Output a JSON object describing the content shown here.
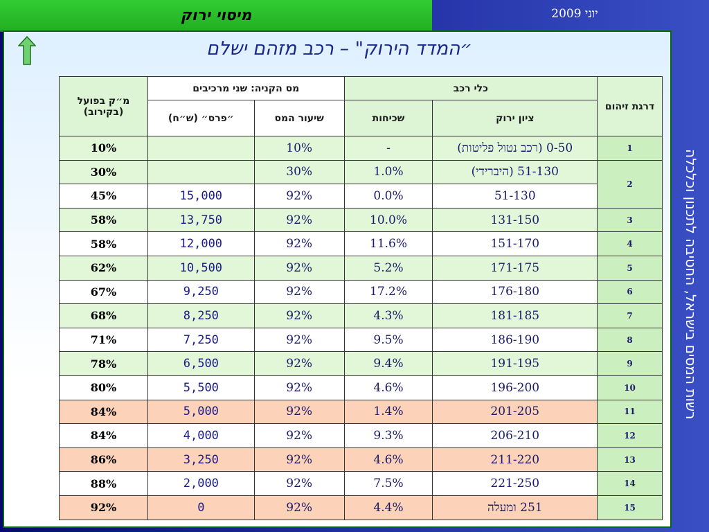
{
  "header": {
    "title": "מיסוי ירוק",
    "date": "יוני  2009"
  },
  "headline": "״המדד הירוק\" – רכב מזהם ישלם",
  "side_text": "רשות המסים בישראל, החטיבה לתכנון וכלכלה",
  "table": {
    "headers": {
      "grade": "דרגת זיהום",
      "vehicle": "כלי רכב",
      "green_score": "ציון ירוק",
      "prevalence": "שכיחות",
      "purchase_tax": "מס הקניה: שני מרכיבים",
      "tax_rate": "שיעור המס",
      "prize": "״פרס״ (ש״ח)",
      "actual": "מ״ק בפועל (בקירוב)"
    },
    "rows": [
      {
        "grade": "1",
        "score": "0-50 (רכב נטול פליטות)",
        "prev": "-",
        "tax": "10%",
        "prize": "",
        "actual": "10%",
        "style": "green"
      },
      {
        "grade": "2",
        "score": "51-130 (היברידי)",
        "prev": "1.0%",
        "tax": "30%",
        "prize": "",
        "actual": "30%",
        "style": "green"
      },
      {
        "grade": "",
        "score": "51-130",
        "prev": "0.0%",
        "tax": "92%",
        "prize": "15,000",
        "actual": "45%",
        "style": "white"
      },
      {
        "grade": "3",
        "score": "131-150",
        "prev": "10.0%",
        "tax": "92%",
        "prize": "13,750",
        "actual": "58%",
        "style": "green"
      },
      {
        "grade": "4",
        "score": "151-170",
        "prev": "11.6%",
        "tax": "92%",
        "prize": "12,000",
        "actual": "58%",
        "style": "white"
      },
      {
        "grade": "5",
        "score": "171-175",
        "prev": "5.2%",
        "tax": "92%",
        "prize": "10,500",
        "actual": "62%",
        "style": "green"
      },
      {
        "grade": "6",
        "score": "176-180",
        "prev": "17.2%",
        "tax": "92%",
        "prize": "9,250",
        "actual": "67%",
        "style": "white"
      },
      {
        "grade": "7",
        "score": "181-185",
        "prev": "4.3%",
        "tax": "92%",
        "prize": "8,250",
        "actual": "68%",
        "style": "green"
      },
      {
        "grade": "8",
        "score": "186-190",
        "prev": "9.5%",
        "tax": "92%",
        "prize": "7,250",
        "actual": "71%",
        "style": "white"
      },
      {
        "grade": "9",
        "score": "191-195",
        "prev": "9.4%",
        "tax": "92%",
        "prize": "6,500",
        "actual": "78%",
        "style": "green"
      },
      {
        "grade": "10",
        "score": "196-200",
        "prev": "4.6%",
        "tax": "92%",
        "prize": "5,500",
        "actual": "80%",
        "style": "white"
      },
      {
        "grade": "11",
        "score": "201-205",
        "prev": "1.4%",
        "tax": "92%",
        "prize": "5,000",
        "actual": "84%",
        "style": "peach"
      },
      {
        "grade": "12",
        "score": "206-210",
        "prev": "9.3%",
        "tax": "92%",
        "prize": "4,000",
        "actual": "84%",
        "style": "white"
      },
      {
        "grade": "13",
        "score": "211-220",
        "prev": "4.6%",
        "tax": "92%",
        "prize": "3,250",
        "actual": "86%",
        "style": "peach"
      },
      {
        "grade": "14",
        "score": "221-250",
        "prev": "7.5%",
        "tax": "92%",
        "prize": "2,000",
        "actual": "88%",
        "style": "white"
      },
      {
        "grade": "15",
        "score": "251 ומעלה",
        "prev": "4.4%",
        "tax": "92%",
        "prize": "0",
        "actual": "92%",
        "style": "peach"
      }
    ]
  },
  "colors": {
    "top_band": "#33cc33",
    "row_green": "#e2f6d8",
    "row_peach": "#fcd2b8",
    "grade_column": "#ccefbf"
  },
  "icons": {
    "nav_arrow": "up-arrow-icon"
  }
}
